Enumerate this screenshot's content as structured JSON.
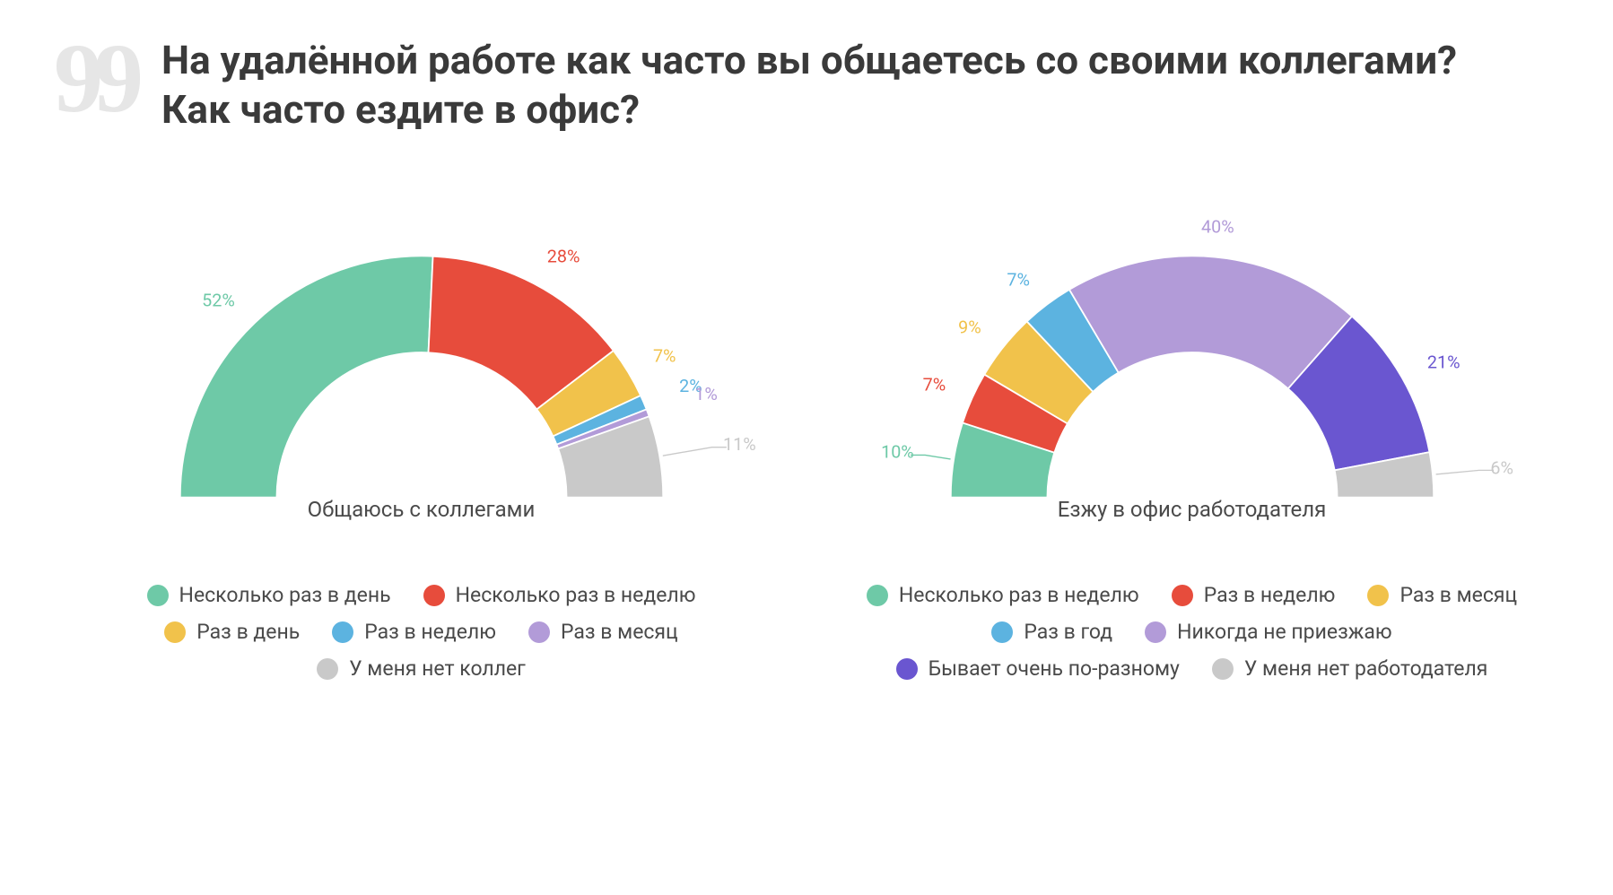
{
  "title": "На удалённой работе как часто вы общаетесь со своими коллегами? Как часто ездите в офис?",
  "quote_glyph": "99",
  "chart": {
    "type": "half-donut",
    "outer_radius": 300,
    "inner_radius": 180,
    "background_color": "#ffffff",
    "label_fontsize": 22,
    "center_label_fontsize": 24,
    "legend_fontsize": 23
  },
  "colors": {
    "green": "#6ec9a7",
    "red": "#e74c3c",
    "yellow": "#f1c24b",
    "sky": "#5cb3e0",
    "lilac": "#b29bd8",
    "purple": "#6a56d0",
    "grey": "#c9c9c9",
    "text": "#4a4a4a",
    "title": "#3a3a3a",
    "quote": "#e6e6e6"
  },
  "left": {
    "center_label": "Общаюсь с коллегами",
    "segments": [
      {
        "label": "Несколько раз в день",
        "value": 52,
        "color": "#6ec9a7",
        "label_offset": 36
      },
      {
        "label": "Несколько раз в неделю",
        "value": 28,
        "color": "#e74c3c",
        "label_offset": 36
      },
      {
        "label": "Раз в день",
        "value": 7,
        "color": "#f1c24b",
        "label_offset": 36
      },
      {
        "label": "Раз в неделю",
        "value": 2,
        "color": "#5cb3e0",
        "label_offset": 48
      },
      {
        "label": "Раз в месяц",
        "value": 1,
        "color": "#b29bd8",
        "label_offset": 62
      },
      {
        "label": "У меня нет коллег",
        "value": 11,
        "color": "#c9c9c9",
        "label_offset": 80,
        "callout": true
      }
    ]
  },
  "right": {
    "center_label": "Езжу в офис работодателя",
    "segments": [
      {
        "label": "Несколько раз в неделю",
        "value": 10,
        "color": "#6ec9a7",
        "label_offset": 50,
        "callout": true
      },
      {
        "label": "Раз в неделю",
        "value": 7,
        "color": "#e74c3c",
        "label_offset": 36
      },
      {
        "label": "Раз в месяц",
        "value": 9,
        "color": "#f1c24b",
        "label_offset": 36
      },
      {
        "label": "Раз в год",
        "value": 7,
        "color": "#5cb3e0",
        "label_offset": 36
      },
      {
        "label": "Никогда не приезжаю",
        "value": 40,
        "color": "#b29bd8",
        "label_offset": 36
      },
      {
        "label": "Бывает очень по-разному",
        "value": 21,
        "color": "#6a56d0",
        "label_offset": 36
      },
      {
        "label": "У меня нет работодателя",
        "value": 6,
        "color": "#c9c9c9",
        "label_offset": 72,
        "callout": true
      }
    ]
  }
}
